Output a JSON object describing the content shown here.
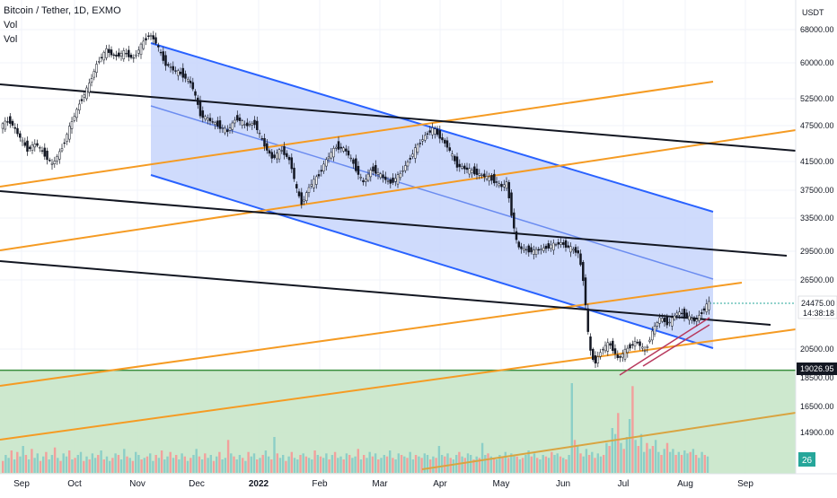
{
  "chart_data": {
    "type": "candlestick",
    "title": "Bitcoin / Tether, 1D, EXMO",
    "indicators": [
      "Vol",
      "Vol"
    ],
    "currency_label": "USDT",
    "y_ticks": [
      68000,
      60000,
      52500,
      47500,
      41500,
      37500,
      33500,
      29500,
      26500,
      20500,
      18500,
      16500,
      14900
    ],
    "y_tick_labels": [
      "68000.00",
      "60000.00",
      "52500.00",
      "47500.00",
      "41500.00",
      "37500.00",
      "33500.00",
      "29500.00",
      "26500.00",
      "20500.00",
      "18500.00",
      "16500.00",
      "14900.00"
    ],
    "x_tick_labels": [
      "Sep",
      "Oct",
      "Nov",
      "Dec",
      "2022",
      "Feb",
      "Mar",
      "Apr",
      "May",
      "Jun",
      "Jul",
      "Aug",
      "Sep"
    ],
    "last_price": "24475.00",
    "countdown": "14:38:18",
    "horizontal_level": "19026.95",
    "volume_badge": "26",
    "price_path": [
      [
        0,
        47200
      ],
      [
        12,
        48500
      ],
      [
        22,
        46000
      ],
      [
        32,
        43500
      ],
      [
        42,
        44500
      ],
      [
        52,
        42500
      ],
      [
        60,
        41000
      ],
      [
        70,
        43500
      ],
      [
        80,
        47500
      ],
      [
        90,
        51500
      ],
      [
        100,
        55000
      ],
      [
        110,
        60000
      ],
      [
        120,
        63000
      ],
      [
        130,
        61500
      ],
      [
        140,
        62500
      ],
      [
        150,
        61000
      ],
      [
        160,
        64500
      ],
      [
        168,
        67000
      ],
      [
        175,
        65000
      ],
      [
        185,
        60000
      ],
      [
        195,
        58500
      ],
      [
        205,
        57500
      ],
      [
        215,
        55500
      ],
      [
        225,
        49500
      ],
      [
        235,
        48500
      ],
      [
        245,
        47500
      ],
      [
        255,
        46500
      ],
      [
        265,
        49000
      ],
      [
        275,
        47500
      ],
      [
        285,
        48000
      ],
      [
        295,
        44500
      ],
      [
        305,
        42000
      ],
      [
        315,
        43500
      ],
      [
        325,
        41500
      ],
      [
        332,
        37500
      ],
      [
        338,
        35500
      ],
      [
        346,
        38000
      ],
      [
        356,
        39500
      ],
      [
        366,
        42000
      ],
      [
        376,
        44000
      ],
      [
        386,
        43500
      ],
      [
        396,
        41000
      ],
      [
        406,
        38500
      ],
      [
        416,
        40500
      ],
      [
        426,
        39500
      ],
      [
        436,
        38500
      ],
      [
        446,
        39500
      ],
      [
        456,
        41500
      ],
      [
        466,
        44000
      ],
      [
        476,
        46000
      ],
      [
        484,
        47000
      ],
      [
        492,
        45500
      ],
      [
        500,
        44000
      ],
      [
        510,
        41000
      ],
      [
        520,
        40500
      ],
      [
        530,
        40000
      ],
      [
        540,
        39500
      ],
      [
        550,
        39000
      ],
      [
        560,
        38000
      ],
      [
        566,
        38500
      ],
      [
        572,
        33500
      ],
      [
        578,
        30000
      ],
      [
        586,
        29700
      ],
      [
        596,
        29500
      ],
      [
        606,
        29800
      ],
      [
        616,
        30200
      ],
      [
        626,
        30500
      ],
      [
        636,
        29900
      ],
      [
        646,
        29300
      ],
      [
        652,
        26000
      ],
      [
        658,
        20500
      ],
      [
        664,
        19500
      ],
      [
        672,
        20500
      ],
      [
        680,
        21000
      ],
      [
        690,
        19800
      ],
      [
        700,
        20500
      ],
      [
        710,
        21200
      ],
      [
        720,
        20300
      ],
      [
        728,
        22000
      ],
      [
        736,
        23200
      ],
      [
        746,
        22700
      ],
      [
        756,
        23700
      ],
      [
        766,
        23400
      ],
      [
        776,
        22900
      ],
      [
        784,
        23800
      ],
      [
        790,
        24475
      ]
    ],
    "volume_values": [
      8,
      12,
      10,
      15,
      9,
      14,
      11,
      18,
      12,
      9,
      16,
      10,
      13,
      8,
      11,
      14,
      9,
      12,
      17,
      10,
      8,
      13,
      11,
      15,
      9,
      10,
      12,
      14,
      8,
      11,
      9,
      13,
      10,
      12,
      15,
      9,
      11,
      8,
      10,
      13,
      12,
      9,
      16,
      11,
      10,
      8,
      14,
      12,
      9,
      10,
      11,
      13,
      8,
      12,
      10,
      15,
      9,
      11,
      14,
      10,
      12,
      9,
      13,
      11,
      8,
      10,
      12,
      16,
      11,
      9,
      13,
      10,
      12,
      8,
      11,
      14,
      9,
      10,
      22,
      13,
      11,
      9,
      12,
      10,
      8,
      14,
      11,
      13,
      9,
      10,
      12,
      15,
      11,
      9,
      24,
      13,
      10,
      12,
      8,
      11,
      14,
      10,
      9,
      12,
      13,
      11,
      10,
      9,
      15,
      12,
      11,
      10,
      13,
      9,
      12,
      14,
      10,
      11,
      9,
      13,
      12,
      10,
      11,
      16,
      9,
      12,
      10,
      14,
      11,
      13,
      9,
      10,
      12,
      11,
      15,
      10,
      9,
      13,
      12,
      11,
      10,
      14,
      9,
      12,
      11,
      10,
      13,
      12,
      9,
      11,
      10,
      18,
      12,
      11,
      13,
      10,
      9,
      12,
      14,
      11,
      10,
      13,
      12,
      9,
      11,
      10,
      20,
      12,
      13,
      11,
      10,
      9,
      12,
      11,
      14,
      10,
      13,
      12,
      11,
      9,
      10,
      12,
      15,
      11,
      13,
      10,
      9,
      12,
      11,
      10,
      14,
      12,
      13,
      11,
      10,
      9,
      12,
      60,
      22,
      18,
      13,
      11,
      16,
      12,
      14,
      10,
      13,
      11,
      12,
      20,
      18,
      30,
      26,
      40,
      20,
      16,
      24,
      36,
      58,
      22,
      18,
      26,
      14,
      20,
      16,
      18,
      22,
      14,
      12,
      16,
      20,
      14,
      16,
      12,
      14,
      12,
      15,
      13,
      14,
      16,
      12,
      10,
      14,
      12,
      11
    ],
    "colors": {
      "up": "#26a69a",
      "down": "#ef5350",
      "channel_fill": "#c7d5fb",
      "channel_line": "#2962ff",
      "channel_mid": "#6b8cf0",
      "orange_line": "#f59b23",
      "black_line": "#131722",
      "support_zone": "#c8e6c9",
      "support_line": "#388e3c"
    }
  }
}
